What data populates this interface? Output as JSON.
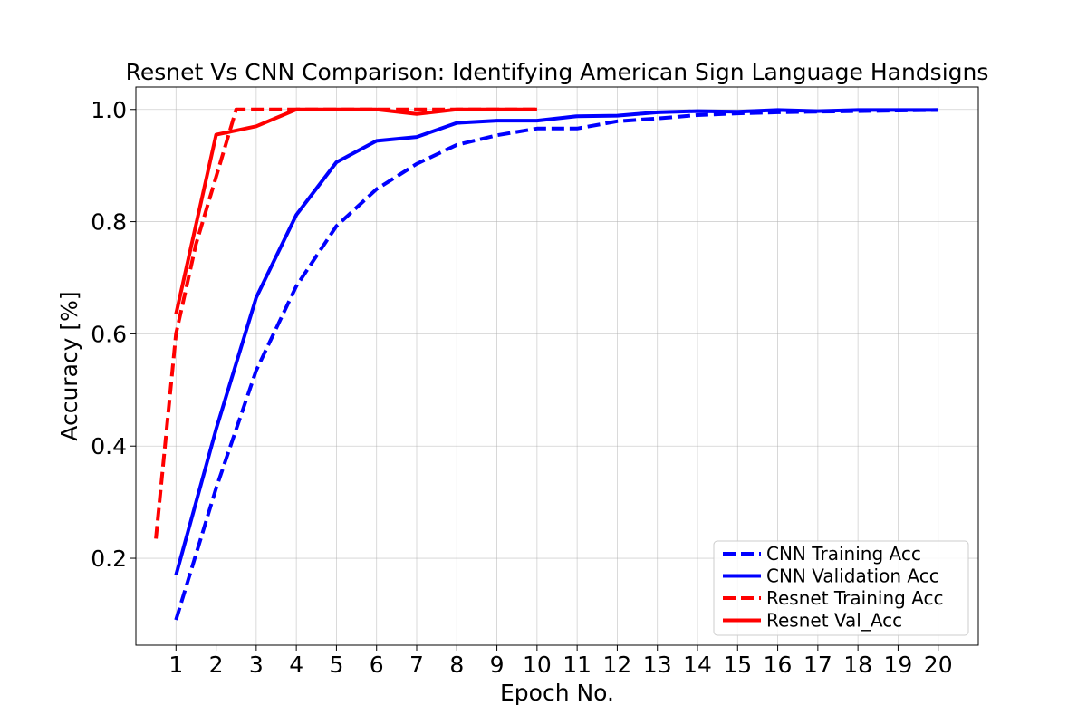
{
  "chart_data": {
    "type": "line",
    "title": "Resnet Vs CNN Comparison: Identifying American Sign Language Handsigns",
    "xlabel": "Epoch No.",
    "ylabel": "Accuracy [%]",
    "x_ticks": [
      1,
      2,
      3,
      4,
      5,
      6,
      7,
      8,
      9,
      10,
      11,
      12,
      13,
      14,
      15,
      16,
      17,
      18,
      19,
      20
    ],
    "y_ticks": [
      0.2,
      0.4,
      0.6,
      0.8,
      1.0
    ],
    "y_tick_labels": [
      "0.2",
      "0.4",
      "0.6",
      "0.8",
      "1.0"
    ],
    "xlim": [
      -0.0,
      21.0
    ],
    "ylim": [
      0.045,
      1.04
    ],
    "grid": true,
    "legend_position": "lower-right",
    "series": [
      {
        "name": "CNN Training Acc",
        "color": "#0000ff",
        "style": "dashed",
        "x": [
          1,
          2,
          3,
          4,
          5,
          6,
          7,
          8,
          9,
          10,
          11,
          12,
          13,
          14,
          15,
          16,
          17,
          18,
          19,
          20
        ],
        "y": [
          0.09,
          0.325,
          0.535,
          0.685,
          0.792,
          0.858,
          0.903,
          0.937,
          0.954,
          0.966,
          0.966,
          0.979,
          0.984,
          0.99,
          0.993,
          0.995,
          0.996,
          0.997,
          0.998,
          0.999
        ]
      },
      {
        "name": "CNN Validation Acc",
        "color": "#0000ff",
        "style": "solid",
        "x": [
          1,
          2,
          3,
          4,
          5,
          6,
          7,
          8,
          9,
          10,
          11,
          12,
          13,
          14,
          15,
          16,
          17,
          18,
          19,
          20
        ],
        "y": [
          0.17,
          0.43,
          0.665,
          0.812,
          0.906,
          0.944,
          0.951,
          0.976,
          0.98,
          0.98,
          0.988,
          0.989,
          0.995,
          0.997,
          0.996,
          0.999,
          0.997,
          0.999,
          0.999,
          0.999
        ]
      },
      {
        "name": "Resnet Training Acc",
        "color": "#ff0000",
        "style": "dashed",
        "x": [
          0.5,
          1,
          1.5,
          2,
          2.5,
          3,
          3.5,
          4,
          4.5,
          5,
          5.5,
          6,
          6.5,
          7,
          7.5,
          8,
          8.5,
          9,
          9.5,
          10
        ],
        "y": [
          0.235,
          0.6,
          0.76,
          0.88,
          1.0,
          1.0,
          1.0,
          1.0,
          1.0,
          1.0,
          1.0,
          1.0,
          1.0,
          1.0,
          1.0,
          1.0,
          1.0,
          1.0,
          1.0,
          1.0
        ]
      },
      {
        "name": "Resnet Val_Acc",
        "color": "#ff0000",
        "style": "solid",
        "x": [
          1,
          2,
          3,
          4,
          5,
          6,
          7,
          8,
          9,
          10
        ],
        "y": [
          0.635,
          0.955,
          0.97,
          1.0,
          1.0,
          1.0,
          0.992,
          1.0,
          1.0,
          1.0
        ]
      }
    ]
  }
}
